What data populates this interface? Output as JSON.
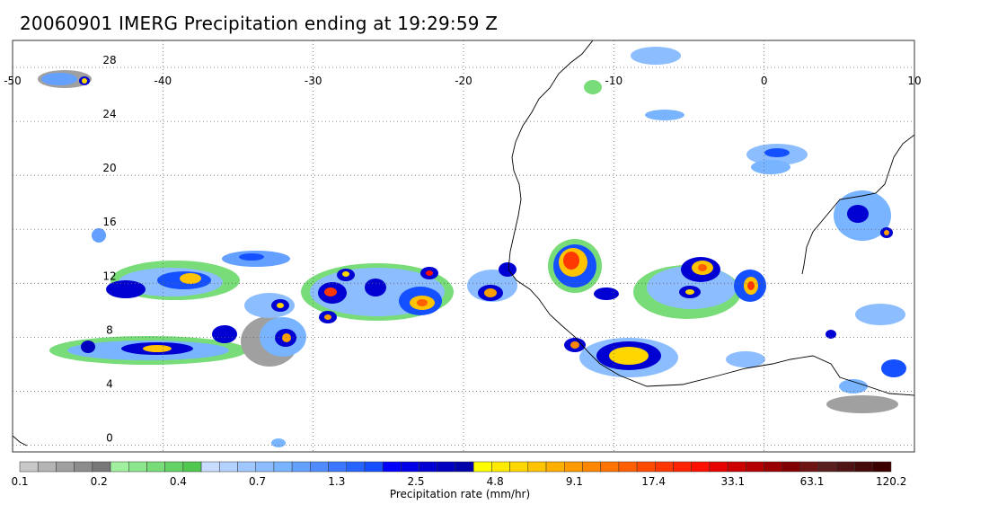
{
  "title": "20060901 IMERG Precipitation ending at 19:29:59 Z",
  "map": {
    "lon_range": [
      -50,
      10
    ],
    "lat_range": [
      -0.5,
      30
    ],
    "lon_ticks": [
      "-50",
      "-40",
      "-30",
      "-20",
      "-10",
      "0",
      "10"
    ],
    "lat_ticks": [
      "28",
      "24",
      "20",
      "16",
      "12",
      "8",
      "4",
      "0"
    ],
    "gridlines": "dotted",
    "land_outline_color": "#000000"
  },
  "colorbar": {
    "title": "Precipitation rate (mm/hr)",
    "tick_labels": [
      "0.1",
      "0.2",
      "0.4",
      "0.7",
      "1.3",
      "2.5",
      "4.8",
      "9.1",
      "17.4",
      "33.1",
      "63.1",
      "120.2"
    ],
    "colors": [
      "#c8c8c8",
      "#b4b4b4",
      "#a0a0a0",
      "#8c8c8c",
      "#787878",
      "#a0f0a0",
      "#8ce68c",
      "#78dc78",
      "#64d264",
      "#50c850",
      "#c8dcff",
      "#b4d2ff",
      "#a0c8ff",
      "#8cbeff",
      "#78b4ff",
      "#64a0ff",
      "#508cff",
      "#3c78ff",
      "#2864ff",
      "#1450ff",
      "#0000ff",
      "#0000e6",
      "#0000d2",
      "#0000be",
      "#0000aa",
      "#ffff00",
      "#ffeb00",
      "#ffd700",
      "#ffc300",
      "#ffaf00",
      "#ff9b00",
      "#ff8700",
      "#ff7300",
      "#ff5f00",
      "#ff4b00",
      "#ff3700",
      "#ff2300",
      "#ff0f00",
      "#e60000",
      "#cd0000",
      "#b40000",
      "#9b0000",
      "#820000",
      "#6e1414",
      "#5a1e1e",
      "#501414",
      "#460a0a",
      "#3c0000"
    ]
  }
}
